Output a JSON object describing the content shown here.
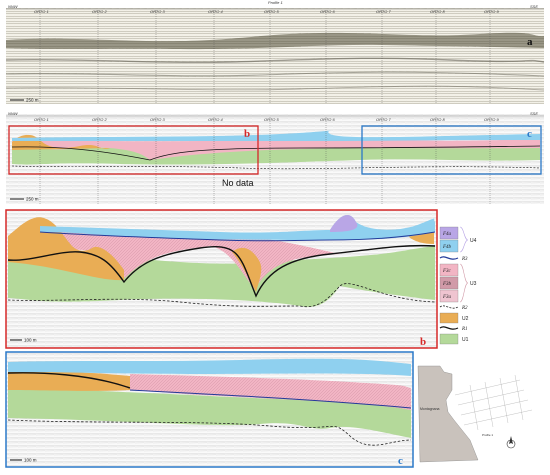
{
  "panel_a": {
    "header": "Profile 1",
    "ortho_labels": [
      "ORTO 1",
      "ORTO 2",
      "ORTO 3",
      "ORTO 4",
      "ORTO 5",
      "ORTO 6",
      "ORTO 7",
      "ORTO 8",
      "ORTO 9"
    ],
    "left_end": "NNW",
    "right_end": "SSE",
    "letter": "a",
    "scale_label": "250 m"
  },
  "panel_overview": {
    "ortho_labels": [
      "ORTO 1",
      "ORTO 2",
      "ORTO 3",
      "ORTO 4",
      "ORTO 5",
      "ORTO 6",
      "ORTO 7",
      "ORTO 8",
      "ORTO 9"
    ],
    "left_end": "NNW",
    "right_end": "SSE",
    "box_b_letter": "b",
    "box_c_letter": "c",
    "no_data": "No data",
    "scale_label": "250 m"
  },
  "panel_b": {
    "letter": "b",
    "scale_label": "100 m"
  },
  "panel_c": {
    "letter": "c",
    "scale_label": "100 m"
  },
  "legend": {
    "items": [
      {
        "code": "F4a",
        "color": "#b9a6e6"
      },
      {
        "code": "F4b",
        "color": "#8fd0ef"
      },
      {
        "code": "R3",
        "color": "#233a99",
        "type": "line"
      },
      {
        "code": "F3c",
        "color": "#f2b5c4"
      },
      {
        "code": "F3b",
        "color": "#d19aa8"
      },
      {
        "code": "F3a",
        "color": "#efc4d0"
      },
      {
        "code": "R2",
        "color": "#333333",
        "type": "dashed"
      },
      {
        "code": "U2",
        "color": "#e9ad55"
      },
      {
        "code": "R1",
        "color": "#111111",
        "type": "line"
      },
      {
        "code": "U1",
        "color": "#b4d99a"
      }
    ],
    "units": [
      "U4",
      "U3",
      "U2",
      "U1"
    ]
  },
  "map": {
    "label_1": "Montagnana",
    "label_2": "Profile 1"
  },
  "colors": {
    "red_box": "#d62828",
    "blue_box": "#2a78c8",
    "u1_green": "#b4d99a",
    "u2_orange": "#e9ad55",
    "u3_pink": "#f2b5c4",
    "u4_blue": "#8fd0ef",
    "u4_purple": "#b9a6e6"
  }
}
